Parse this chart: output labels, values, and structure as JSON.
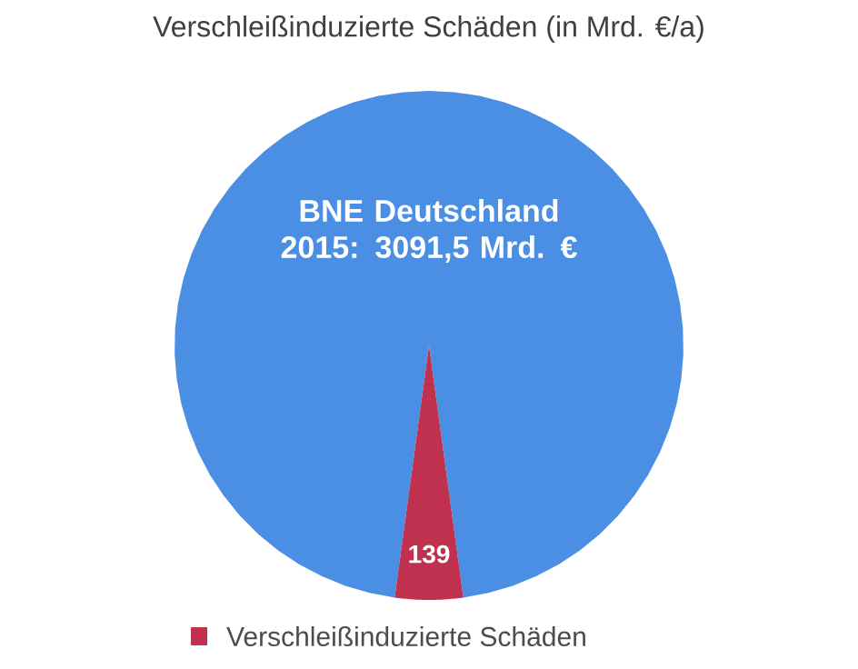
{
  "chart_data": {
    "type": "pie",
    "title": "Verschleißinduzierte Schäden (in Mrd. €/a)",
    "categories": [
      null,
      "Verschleißinduzierte Schäden"
    ],
    "values": [
      3091.5,
      139
    ],
    "colors": [
      "#4a8fe3",
      "#c0304f"
    ],
    "value_labels": [
      "BNE Deutschland 2015: 3091,5 Mrd. €",
      "139"
    ],
    "legend": "bottom"
  }
}
